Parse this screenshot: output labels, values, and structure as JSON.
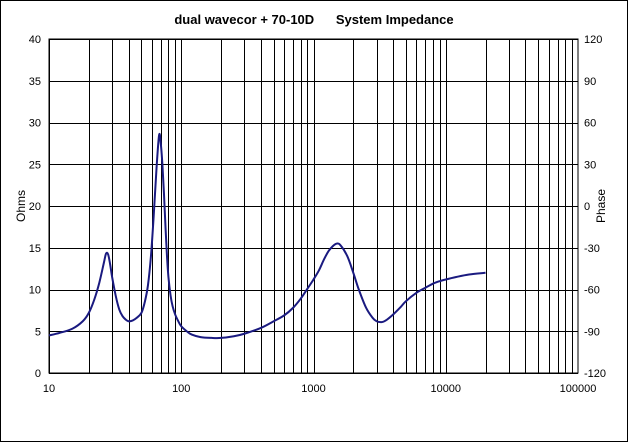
{
  "chart_data": {
    "type": "line",
    "title": "dual wavecor + 70-10D      System Impedance",
    "xlabel": "",
    "ylabel": "Ohms",
    "y2label": "Phase",
    "x_scale": "log",
    "xlim": [
      10,
      100000
    ],
    "ylim": [
      0,
      40
    ],
    "y2lim": [
      -120,
      120
    ],
    "x_ticks": [
      "10",
      "100",
      "1000",
      "10000",
      "100000"
    ],
    "y_ticks": [
      "0",
      "5",
      "10",
      "15",
      "20",
      "25",
      "30",
      "35",
      "40"
    ],
    "y2_ticks": [
      "-120",
      "-90",
      "-60",
      "-30",
      "0",
      "30",
      "60",
      "90",
      "120"
    ],
    "grid": true,
    "legend": "none",
    "colors": {
      "line": "#1a1a80",
      "grid": "#000000",
      "background": "#ffffff"
    },
    "series": [
      {
        "x": [
          10,
          12,
          15,
          18,
          20,
          22,
          24,
          26,
          27,
          28,
          29,
          30,
          32,
          34,
          36,
          38,
          40,
          43,
          46,
          50,
          53,
          56,
          59,
          62,
          65,
          68,
          70,
          72,
          74,
          76,
          78,
          80,
          83,
          86,
          90,
          95,
          100,
          110,
          120,
          140,
          170,
          200,
          250,
          300,
          400,
          500,
          600,
          700,
          800,
          900,
          1000,
          1100,
          1200,
          1300,
          1400,
          1500,
          1600,
          1800,
          2000,
          2200,
          2500,
          2800,
          3000,
          3300,
          3600,
          4000,
          4500,
          5000,
          6000,
          7000,
          8000,
          9000,
          10000,
          12000,
          15000,
          20000
        ],
        "values": [
          4.5,
          4.8,
          5.3,
          6.2,
          7.2,
          8.8,
          10.8,
          13.2,
          14.3,
          14.2,
          13.0,
          11.5,
          9.2,
          7.6,
          6.8,
          6.4,
          6.2,
          6.3,
          6.6,
          7.2,
          8.5,
          10.5,
          14.0,
          19.0,
          24.5,
          28.5,
          27.5,
          25.0,
          21.5,
          17.5,
          14.0,
          11.5,
          9.3,
          8.0,
          7.0,
          6.2,
          5.6,
          5.0,
          4.6,
          4.3,
          4.2,
          4.2,
          4.4,
          4.7,
          5.4,
          6.2,
          6.9,
          7.8,
          8.9,
          10.1,
          11.2,
          12.3,
          13.6,
          14.6,
          15.2,
          15.5,
          15.3,
          14.0,
          12.0,
          10.0,
          7.8,
          6.6,
          6.2,
          6.1,
          6.4,
          7.0,
          7.8,
          8.6,
          9.6,
          10.2,
          10.7,
          11.0,
          11.2,
          11.5,
          11.8,
          12.0
        ]
      }
    ]
  }
}
